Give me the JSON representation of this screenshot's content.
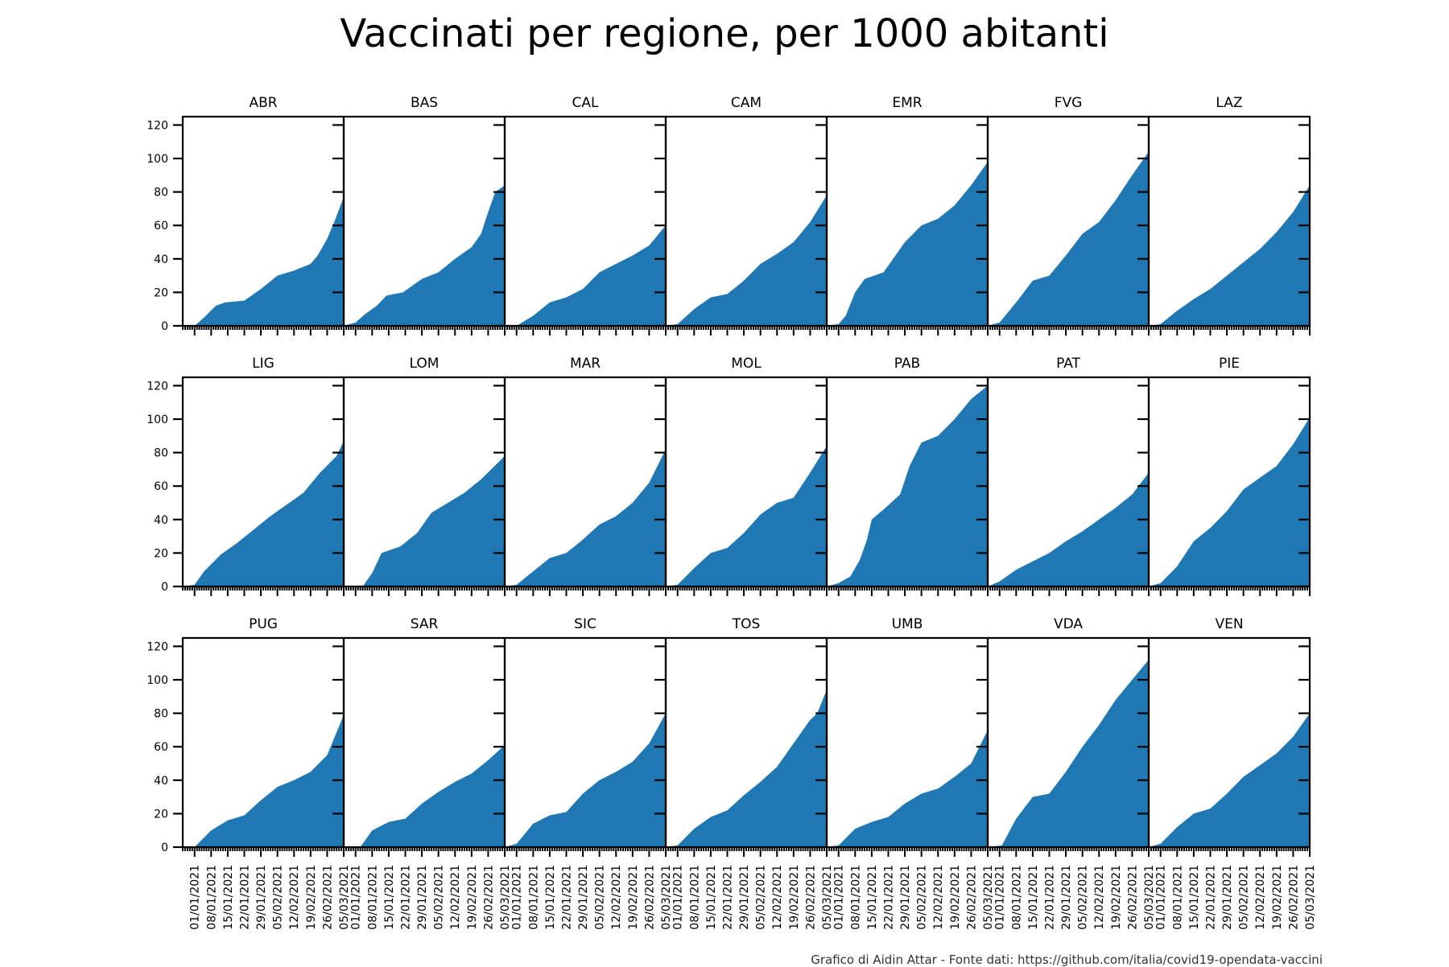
{
  "title": "Vaccinati per regione, per 1000 abitanti",
  "footer": "Grafico di Aidin Attar - Fonte dati: https://github.com/italia/covid19-opendata-vaccini",
  "colors": {
    "fill": "#1f77b4",
    "axis": "#000000"
  },
  "chart_data": {
    "type": "area",
    "layout": "small-multiples",
    "ylim": [
      0,
      125
    ],
    "yticks": [
      0,
      20,
      40,
      60,
      80,
      100,
      120
    ],
    "xlim": [
      "2020-12-27",
      "2021-03-05"
    ],
    "xtick_labels": [
      "01/01/2021",
      "08/01/2021",
      "15/01/2021",
      "22/01/2021",
      "29/01/2021",
      "05/02/2021",
      "12/02/2021",
      "19/02/2021",
      "26/02/2021",
      "05/03/2021"
    ],
    "xtick_dates": [
      "2021-01-01",
      "2021-01-08",
      "2021-01-15",
      "2021-01-22",
      "2021-01-29",
      "2021-02-05",
      "2021-02-12",
      "2021-02-19",
      "2021-02-26",
      "2021-03-05"
    ],
    "series": [
      {
        "name": "ABR",
        "points": [
          [
            "2020-12-27",
            0
          ],
          [
            "2021-01-01",
            0
          ],
          [
            "2021-01-05",
            5
          ],
          [
            "2021-01-10",
            12
          ],
          [
            "2021-01-14",
            14
          ],
          [
            "2021-01-22",
            15
          ],
          [
            "2021-01-29",
            22
          ],
          [
            "2021-02-05",
            30
          ],
          [
            "2021-02-12",
            33
          ],
          [
            "2021-02-19",
            37
          ],
          [
            "2021-02-22",
            42
          ],
          [
            "2021-02-26",
            52
          ],
          [
            "2021-03-01",
            62
          ],
          [
            "2021-03-05",
            77
          ]
        ]
      },
      {
        "name": "BAS",
        "points": [
          [
            "2020-12-27",
            0
          ],
          [
            "2021-01-01",
            2
          ],
          [
            "2021-01-05",
            7
          ],
          [
            "2021-01-10",
            12
          ],
          [
            "2021-01-14",
            18
          ],
          [
            "2021-01-21",
            20
          ],
          [
            "2021-01-29",
            28
          ],
          [
            "2021-02-05",
            32
          ],
          [
            "2021-02-12",
            40
          ],
          [
            "2021-02-19",
            47
          ],
          [
            "2021-02-23",
            55
          ],
          [
            "2021-02-26",
            68
          ],
          [
            "2021-03-01",
            80
          ],
          [
            "2021-03-05",
            84
          ]
        ]
      },
      {
        "name": "CAL",
        "points": [
          [
            "2020-12-27",
            0
          ],
          [
            "2021-01-01",
            0
          ],
          [
            "2021-01-08",
            6
          ],
          [
            "2021-01-15",
            14
          ],
          [
            "2021-01-22",
            17
          ],
          [
            "2021-01-29",
            22
          ],
          [
            "2021-02-05",
            32
          ],
          [
            "2021-02-12",
            37
          ],
          [
            "2021-02-19",
            42
          ],
          [
            "2021-02-26",
            48
          ],
          [
            "2021-03-05",
            60
          ]
        ]
      },
      {
        "name": "CAM",
        "points": [
          [
            "2020-12-27",
            0
          ],
          [
            "2021-01-01",
            1
          ],
          [
            "2021-01-08",
            10
          ],
          [
            "2021-01-15",
            17
          ],
          [
            "2021-01-22",
            19
          ],
          [
            "2021-01-29",
            27
          ],
          [
            "2021-02-05",
            37
          ],
          [
            "2021-02-12",
            43
          ],
          [
            "2021-02-19",
            50
          ],
          [
            "2021-02-26",
            62
          ],
          [
            "2021-03-05",
            78
          ]
        ]
      },
      {
        "name": "EMR",
        "points": [
          [
            "2020-12-27",
            0
          ],
          [
            "2021-01-01",
            1
          ],
          [
            "2021-01-04",
            6
          ],
          [
            "2021-01-08",
            20
          ],
          [
            "2021-01-12",
            28
          ],
          [
            "2021-01-20",
            32
          ],
          [
            "2021-01-29",
            50
          ],
          [
            "2021-02-05",
            60
          ],
          [
            "2021-02-12",
            64
          ],
          [
            "2021-02-19",
            72
          ],
          [
            "2021-02-26",
            84
          ],
          [
            "2021-03-05",
            98
          ]
        ]
      },
      {
        "name": "FVG",
        "points": [
          [
            "2020-12-27",
            0
          ],
          [
            "2021-01-01",
            2
          ],
          [
            "2021-01-08",
            14
          ],
          [
            "2021-01-15",
            27
          ],
          [
            "2021-01-22",
            30
          ],
          [
            "2021-01-29",
            42
          ],
          [
            "2021-02-05",
            55
          ],
          [
            "2021-02-12",
            62
          ],
          [
            "2021-02-19",
            75
          ],
          [
            "2021-02-26",
            90
          ],
          [
            "2021-03-05",
            104
          ]
        ]
      },
      {
        "name": "LAZ",
        "points": [
          [
            "2020-12-27",
            0
          ],
          [
            "2021-01-01",
            1
          ],
          [
            "2021-01-08",
            9
          ],
          [
            "2021-01-15",
            16
          ],
          [
            "2021-01-22",
            22
          ],
          [
            "2021-01-29",
            30
          ],
          [
            "2021-02-05",
            38
          ],
          [
            "2021-02-12",
            46
          ],
          [
            "2021-02-19",
            56
          ],
          [
            "2021-02-26",
            68
          ],
          [
            "2021-03-05",
            84
          ]
        ]
      },
      {
        "name": "LIG",
        "points": [
          [
            "2020-12-27",
            0
          ],
          [
            "2021-01-01",
            1
          ],
          [
            "2021-01-05",
            9
          ],
          [
            "2021-01-12",
            19
          ],
          [
            "2021-01-19",
            26
          ],
          [
            "2021-01-26",
            34
          ],
          [
            "2021-02-02",
            42
          ],
          [
            "2021-02-09",
            49
          ],
          [
            "2021-02-16",
            56
          ],
          [
            "2021-02-23",
            68
          ],
          [
            "2021-03-02",
            78
          ],
          [
            "2021-03-05",
            87
          ]
        ]
      },
      {
        "name": "LOM",
        "points": [
          [
            "2020-12-27",
            0
          ],
          [
            "2021-01-04",
            0
          ],
          [
            "2021-01-08",
            8
          ],
          [
            "2021-01-12",
            20
          ],
          [
            "2021-01-20",
            24
          ],
          [
            "2021-01-27",
            32
          ],
          [
            "2021-02-02",
            44
          ],
          [
            "2021-02-09",
            50
          ],
          [
            "2021-02-16",
            56
          ],
          [
            "2021-02-23",
            64
          ],
          [
            "2021-03-05",
            78
          ]
        ]
      },
      {
        "name": "MAR",
        "points": [
          [
            "2020-12-27",
            0
          ],
          [
            "2021-01-01",
            1
          ],
          [
            "2021-01-08",
            9
          ],
          [
            "2021-01-15",
            17
          ],
          [
            "2021-01-22",
            20
          ],
          [
            "2021-01-29",
            28
          ],
          [
            "2021-02-05",
            37
          ],
          [
            "2021-02-12",
            42
          ],
          [
            "2021-02-19",
            50
          ],
          [
            "2021-02-26",
            62
          ],
          [
            "2021-03-05",
            82
          ]
        ]
      },
      {
        "name": "MOL",
        "points": [
          [
            "2020-12-27",
            0
          ],
          [
            "2021-01-01",
            1
          ],
          [
            "2021-01-08",
            11
          ],
          [
            "2021-01-15",
            20
          ],
          [
            "2021-01-22",
            23
          ],
          [
            "2021-01-29",
            32
          ],
          [
            "2021-02-05",
            43
          ],
          [
            "2021-02-12",
            50
          ],
          [
            "2021-02-19",
            53
          ],
          [
            "2021-02-26",
            68
          ],
          [
            "2021-03-05",
            84
          ]
        ]
      },
      {
        "name": "PAB",
        "points": [
          [
            "2020-12-27",
            0
          ],
          [
            "2021-01-01",
            2
          ],
          [
            "2021-01-06",
            6
          ],
          [
            "2021-01-10",
            16
          ],
          [
            "2021-01-13",
            28
          ],
          [
            "2021-01-15",
            40
          ],
          [
            "2021-01-20",
            46
          ],
          [
            "2021-01-27",
            55
          ],
          [
            "2021-01-31",
            72
          ],
          [
            "2021-02-05",
            86
          ],
          [
            "2021-02-12",
            90
          ],
          [
            "2021-02-19",
            100
          ],
          [
            "2021-02-26",
            112
          ],
          [
            "2021-03-05",
            120
          ]
        ]
      },
      {
        "name": "PAT",
        "points": [
          [
            "2020-12-27",
            0
          ],
          [
            "2021-01-01",
            3
          ],
          [
            "2021-01-08",
            10
          ],
          [
            "2021-01-15",
            15
          ],
          [
            "2021-01-22",
            20
          ],
          [
            "2021-01-29",
            27
          ],
          [
            "2021-02-05",
            33
          ],
          [
            "2021-02-12",
            40
          ],
          [
            "2021-02-19",
            47
          ],
          [
            "2021-02-26",
            55
          ],
          [
            "2021-03-05",
            68
          ]
        ]
      },
      {
        "name": "PIE",
        "points": [
          [
            "2020-12-27",
            0
          ],
          [
            "2021-01-01",
            2
          ],
          [
            "2021-01-08",
            12
          ],
          [
            "2021-01-15",
            27
          ],
          [
            "2021-01-22",
            35
          ],
          [
            "2021-01-29",
            45
          ],
          [
            "2021-02-05",
            58
          ],
          [
            "2021-02-12",
            65
          ],
          [
            "2021-02-19",
            72
          ],
          [
            "2021-02-26",
            85
          ],
          [
            "2021-03-05",
            101
          ]
        ]
      },
      {
        "name": "PUG",
        "points": [
          [
            "2020-12-27",
            0
          ],
          [
            "2021-01-01",
            0
          ],
          [
            "2021-01-08",
            10
          ],
          [
            "2021-01-15",
            16
          ],
          [
            "2021-01-22",
            19
          ],
          [
            "2021-01-29",
            28
          ],
          [
            "2021-02-05",
            36
          ],
          [
            "2021-02-12",
            40
          ],
          [
            "2021-02-19",
            45
          ],
          [
            "2021-02-26",
            55
          ],
          [
            "2021-03-05",
            79
          ]
        ]
      },
      {
        "name": "SAR",
        "points": [
          [
            "2020-12-27",
            0
          ],
          [
            "2021-01-03",
            0
          ],
          [
            "2021-01-08",
            10
          ],
          [
            "2021-01-15",
            15
          ],
          [
            "2021-01-22",
            17
          ],
          [
            "2021-01-29",
            26
          ],
          [
            "2021-02-05",
            33
          ],
          [
            "2021-02-12",
            39
          ],
          [
            "2021-02-19",
            44
          ],
          [
            "2021-02-26",
            52
          ],
          [
            "2021-03-05",
            61
          ]
        ]
      },
      {
        "name": "SIC",
        "points": [
          [
            "2020-12-27",
            0
          ],
          [
            "2021-01-01",
            2
          ],
          [
            "2021-01-08",
            14
          ],
          [
            "2021-01-15",
            19
          ],
          [
            "2021-01-22",
            21
          ],
          [
            "2021-01-29",
            32
          ],
          [
            "2021-02-05",
            40
          ],
          [
            "2021-02-12",
            45
          ],
          [
            "2021-02-19",
            51
          ],
          [
            "2021-02-26",
            62
          ],
          [
            "2021-03-05",
            80
          ]
        ]
      },
      {
        "name": "TOS",
        "points": [
          [
            "2020-12-27",
            0
          ],
          [
            "2021-01-01",
            1
          ],
          [
            "2021-01-08",
            11
          ],
          [
            "2021-01-15",
            18
          ],
          [
            "2021-01-22",
            22
          ],
          [
            "2021-01-29",
            31
          ],
          [
            "2021-02-05",
            39
          ],
          [
            "2021-02-12",
            48
          ],
          [
            "2021-02-19",
            62
          ],
          [
            "2021-02-26",
            76
          ],
          [
            "2021-03-01",
            80
          ],
          [
            "2021-03-05",
            94
          ]
        ]
      },
      {
        "name": "UMB",
        "points": [
          [
            "2020-12-27",
            0
          ],
          [
            "2021-01-01",
            1
          ],
          [
            "2021-01-08",
            11
          ],
          [
            "2021-01-15",
            15
          ],
          [
            "2021-01-22",
            18
          ],
          [
            "2021-01-29",
            26
          ],
          [
            "2021-02-05",
            32
          ],
          [
            "2021-02-12",
            35
          ],
          [
            "2021-02-19",
            42
          ],
          [
            "2021-02-26",
            50
          ],
          [
            "2021-03-05",
            70
          ]
        ]
      },
      {
        "name": "VDA",
        "points": [
          [
            "2020-12-27",
            0
          ],
          [
            "2021-01-02",
            1
          ],
          [
            "2021-01-08",
            17
          ],
          [
            "2021-01-15",
            30
          ],
          [
            "2021-01-22",
            32
          ],
          [
            "2021-01-29",
            45
          ],
          [
            "2021-02-05",
            60
          ],
          [
            "2021-02-12",
            73
          ],
          [
            "2021-02-19",
            88
          ],
          [
            "2021-02-26",
            100
          ],
          [
            "2021-03-05",
            112
          ]
        ]
      },
      {
        "name": "VEN",
        "points": [
          [
            "2020-12-27",
            0
          ],
          [
            "2021-01-01",
            2
          ],
          [
            "2021-01-08",
            12
          ],
          [
            "2021-01-15",
            20
          ],
          [
            "2021-01-22",
            23
          ],
          [
            "2021-01-29",
            32
          ],
          [
            "2021-02-05",
            42
          ],
          [
            "2021-02-12",
            49
          ],
          [
            "2021-02-19",
            56
          ],
          [
            "2021-02-26",
            66
          ],
          [
            "2021-03-05",
            80
          ]
        ]
      }
    ]
  }
}
